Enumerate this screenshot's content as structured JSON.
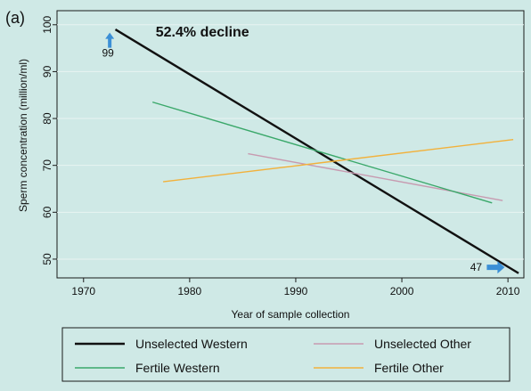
{
  "panel_label": "(a)",
  "colors": {
    "background": "#cfe9e6",
    "plot_background": "#cfe9e6",
    "unselected_western": "#111111",
    "unselected_other": "#c79ab0",
    "fertile_western": "#3aa86a",
    "fertile_other": "#f2b13b",
    "arrow": "#3b8fd6"
  },
  "chart_data": {
    "type": "line",
    "title": "",
    "xlabel": "Year of sample collection",
    "ylabel": "Sperm concentration (million/ml)",
    "xlim": [
      1967.5,
      2011.5
    ],
    "ylim": [
      46,
      103
    ],
    "xticks": [
      1970,
      1980,
      1990,
      2000,
      2010
    ],
    "yticks": [
      50,
      60,
      70,
      80,
      90,
      100
    ],
    "grid": true,
    "series": [
      {
        "name": "Unselected Western",
        "color": "#111111",
        "width": 2.4,
        "x": [
          1973,
          2011
        ],
        "y": [
          99,
          47
        ]
      },
      {
        "name": "Unselected Other",
        "color": "#c79ab0",
        "width": 1.4,
        "x": [
          1985.5,
          2009.5
        ],
        "y": [
          72.5,
          62.5
        ]
      },
      {
        "name": "Fertile Western",
        "color": "#3aa86a",
        "width": 1.4,
        "x": [
          1976.5,
          2008.5
        ],
        "y": [
          83.5,
          62
        ]
      },
      {
        "name": "Fertile Other",
        "color": "#f2b13b",
        "width": 1.4,
        "x": [
          1977.5,
          2010.5
        ],
        "y": [
          66.5,
          75.5
        ]
      }
    ],
    "annotations": [
      {
        "text": "52.4% decline",
        "x": 1976.8,
        "y": 97.5,
        "bold": true
      },
      {
        "text": "99",
        "x": 1972.3,
        "y": 93.2,
        "arrow": "up"
      },
      {
        "text": "47",
        "x": 2007.0,
        "y": 47.5,
        "arrow": "right"
      }
    ],
    "legend": {
      "placement": "bottom",
      "entries": [
        "Unselected Western",
        "Unselected Other",
        "Fertile Western",
        "Fertile Other"
      ]
    }
  }
}
